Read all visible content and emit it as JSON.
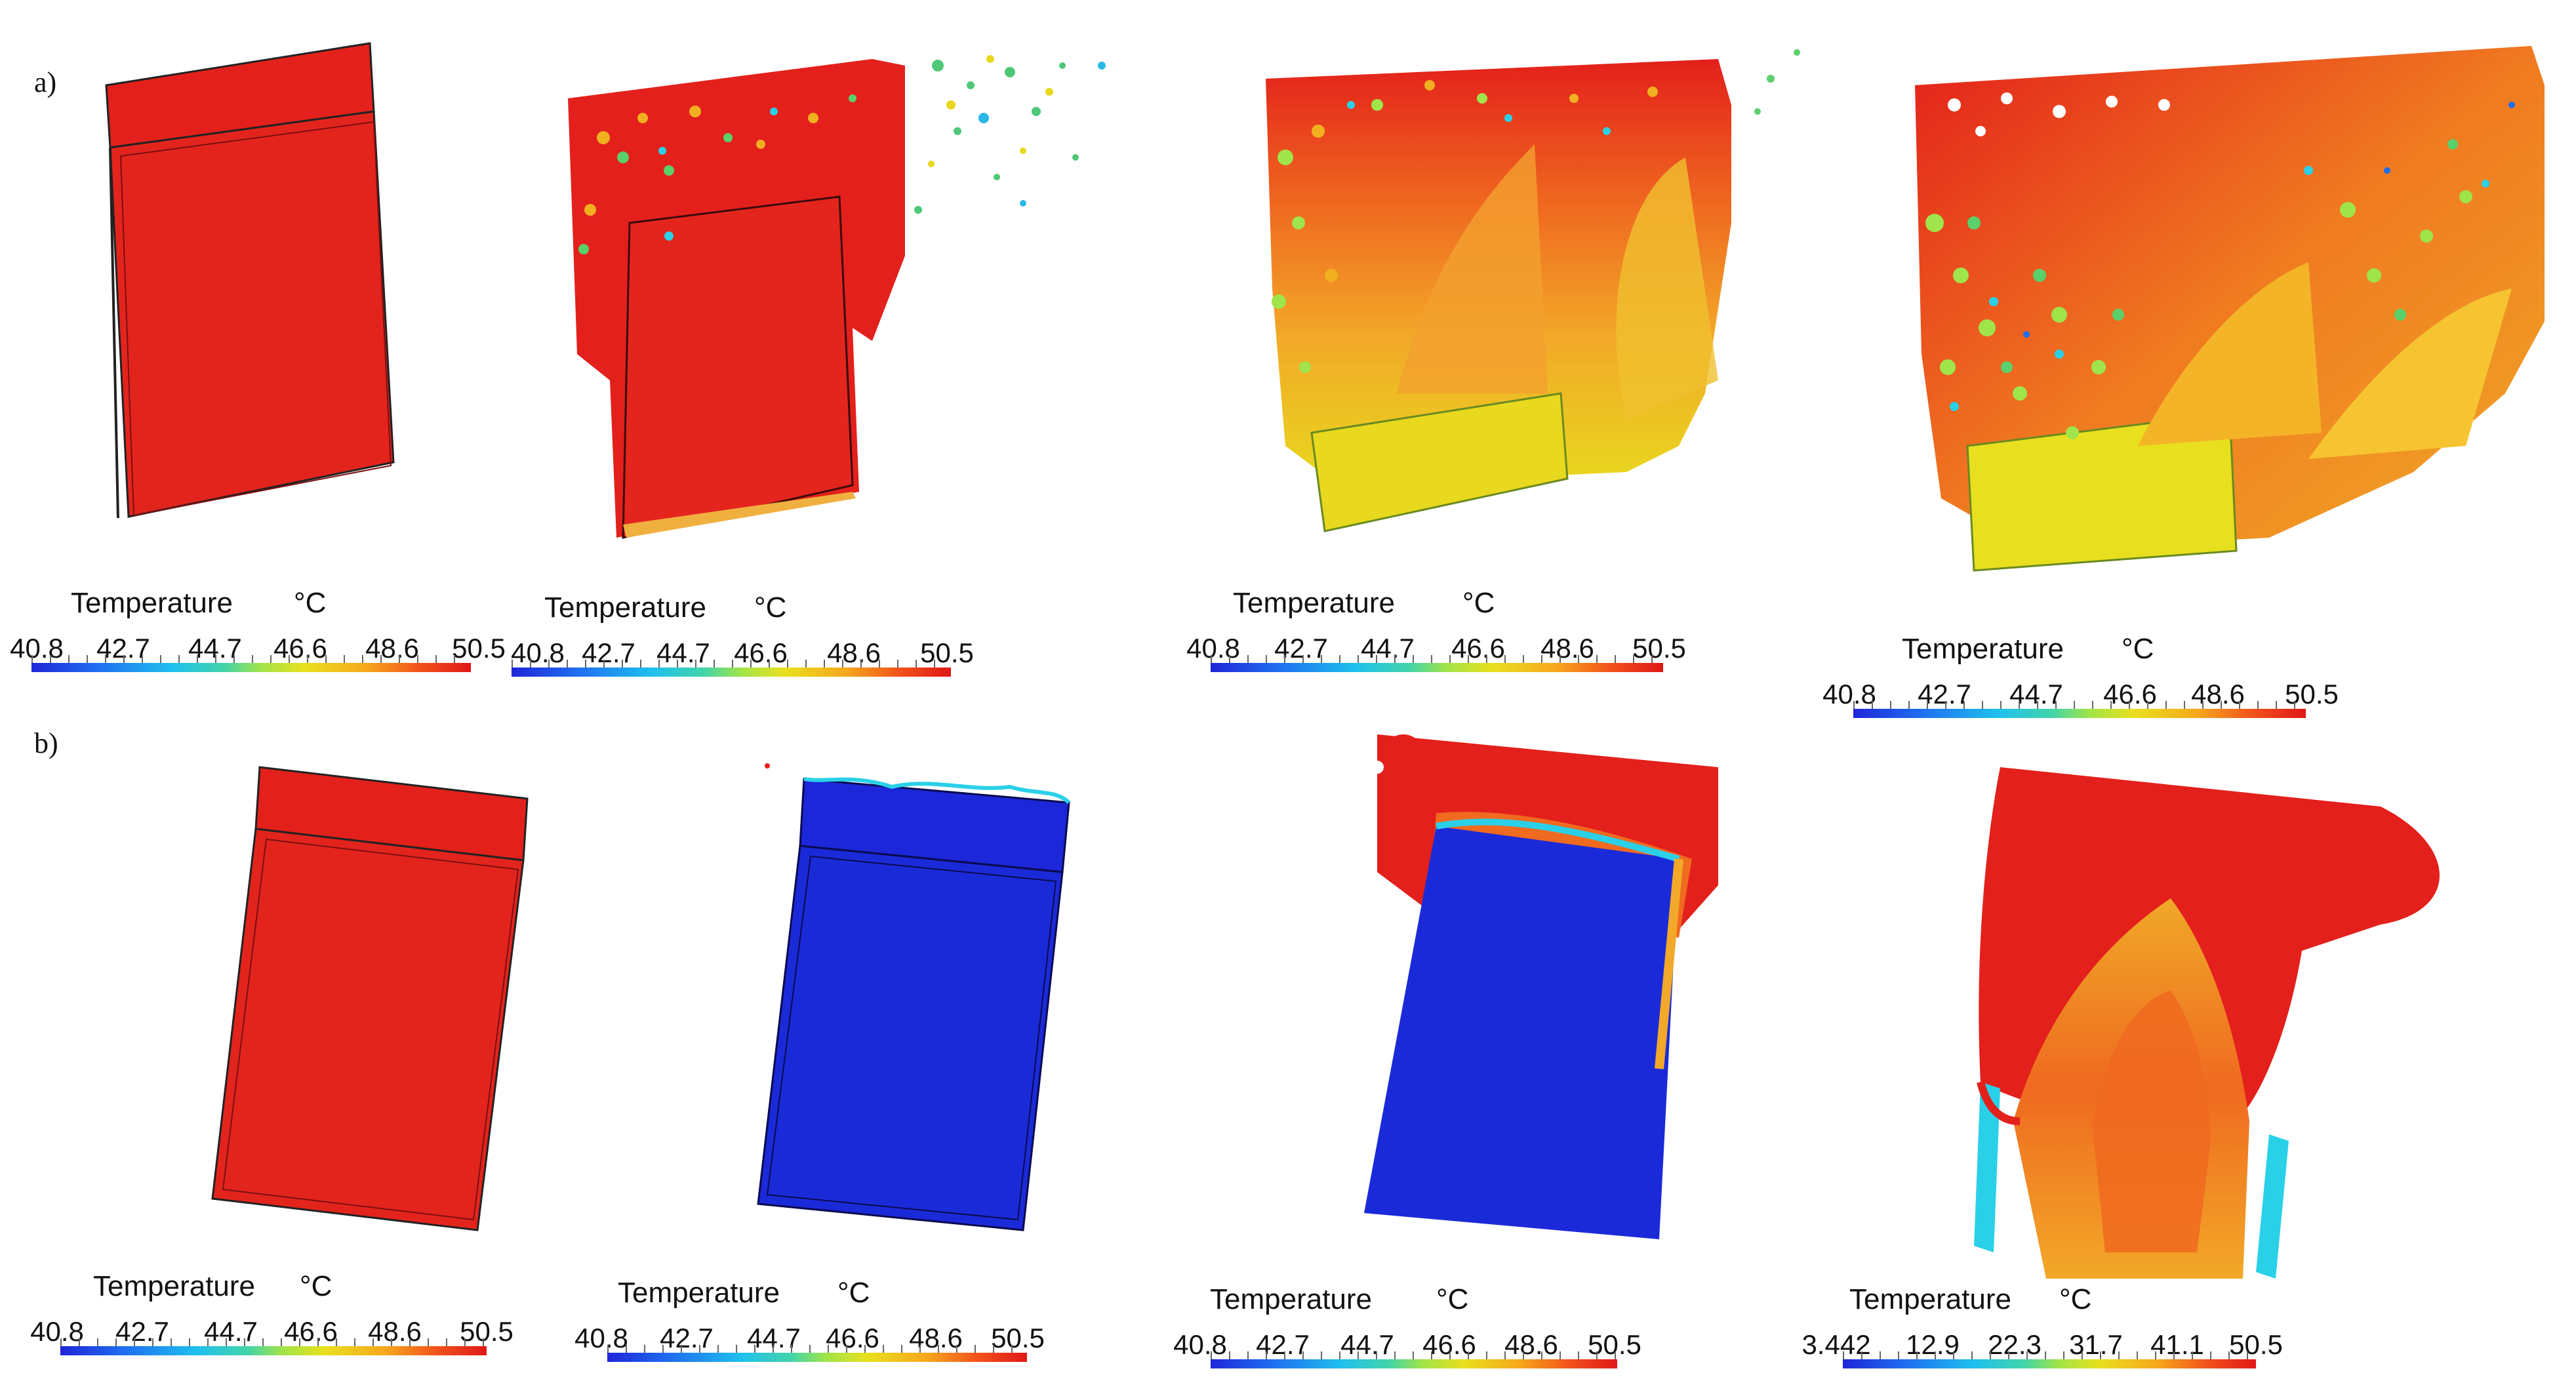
{
  "figure": {
    "row_a_label": "a)",
    "row_b_label": "b)"
  },
  "colors": {
    "hot_red": "#e3201b",
    "cold_blue": "#1b27d8",
    "mid_orange": "#f09a23",
    "mid_yellow": "#e8d81e",
    "mid_green": "#7fd84a",
    "cyan": "#2ad0e8"
  },
  "legends": {
    "a1": {
      "title": "Temperature",
      "unit": "°C",
      "ticks": [
        "40.8",
        "42.7",
        "44.7",
        "46.6",
        "48.6",
        "50.5"
      ]
    },
    "a2": {
      "title": "Temperature",
      "unit": "°C",
      "ticks": [
        "40.8",
        "42.7",
        "44.7",
        "46.6",
        "48.6",
        "50.5"
      ]
    },
    "a3": {
      "title": "Temperature",
      "unit": "°C",
      "ticks": [
        "40.8",
        "42.7",
        "44.7",
        "46.6",
        "48.6",
        "50.5"
      ]
    },
    "a4": {
      "title": "Temperature",
      "unit": "°C",
      "ticks": [
        "40.8",
        "42.7",
        "44.7",
        "46.6",
        "48.6",
        "50.5"
      ]
    },
    "b1": {
      "title": "Temperature",
      "unit": "°C",
      "ticks": [
        "40.8",
        "42.7",
        "44.7",
        "46.6",
        "48.6",
        "50.5"
      ]
    },
    "b2": {
      "title": "Temperature",
      "unit": "°C",
      "ticks": [
        "40.8",
        "42.7",
        "44.7",
        "46.6",
        "48.6",
        "50.5"
      ]
    },
    "b3": {
      "title": "Temperature",
      "unit": "°C",
      "ticks": [
        "40.8",
        "42.7",
        "44.7",
        "46.6",
        "48.6",
        "50.5"
      ]
    },
    "b4": {
      "title": "Temperature",
      "unit": "°C",
      "ticks": [
        "3.442",
        "12.9",
        "22.3",
        "31.7",
        "41.1",
        "50.5"
      ]
    }
  }
}
